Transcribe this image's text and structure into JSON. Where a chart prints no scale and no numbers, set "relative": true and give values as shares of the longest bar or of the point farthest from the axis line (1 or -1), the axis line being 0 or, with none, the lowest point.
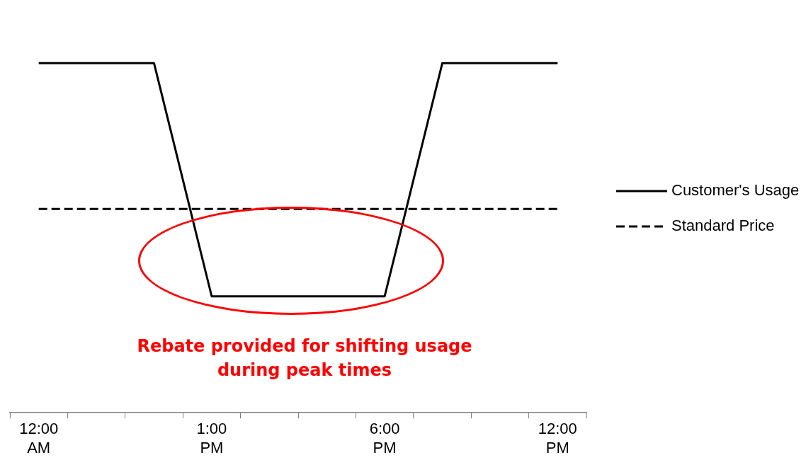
{
  "chart_data": {
    "type": "line",
    "relative": true,
    "categories": [
      "12:00 AM",
      null,
      null,
      "1:00 PM",
      null,
      null,
      "6:00 PM",
      null,
      null,
      "12:00 PM"
    ],
    "series": [
      {
        "name": "Customer's Usage",
        "color": "#000000",
        "line_style": "solid",
        "values": [
          1,
          1,
          1,
          0.333,
          0.333,
          0.333,
          0.333,
          1,
          1,
          1
        ]
      },
      {
        "name": "Standard Price",
        "color": "#000000",
        "line_style": "dashed",
        "values": [
          0.583,
          0.583,
          0.583,
          0.583,
          0.583,
          0.583,
          0.583,
          0.583,
          0.583,
          0.583
        ]
      }
    ],
    "marker": "none",
    "grid": false,
    "legend": "right",
    "annotations": [
      "Rebate provided for shifting usage during peak times"
    ]
  }
}
